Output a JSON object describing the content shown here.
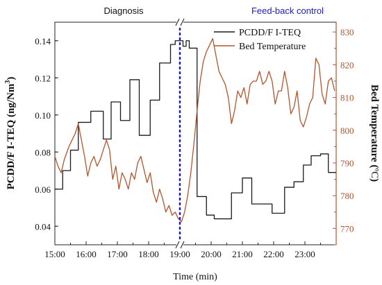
{
  "chart_data": {
    "type": "line",
    "phase_labels": {
      "left": "Diagnosis",
      "right": "Feed-back control"
    },
    "xlabel": "Time (min)",
    "ylabel_left": "PCDD/F I-TEQ (ng/Nm",
    "ylabel_left_sup": "3",
    "ylabel_left_end": ")",
    "ylabel_right": "Bed Temperature (",
    "ylabel_right_unit": "ºC",
    "ylabel_right_end": ")",
    "x_ticks": [
      "15:00",
      "16:00",
      "17:00",
      "18:00",
      "19:00",
      "20:00",
      "21:00",
      "22:00",
      "23:00"
    ],
    "x_tick_hours": [
      15,
      16,
      17,
      18,
      19,
      20,
      21,
      22,
      23
    ],
    "xlim_hours": [
      15.0,
      24.0
    ],
    "axis_break_hour": 19.0,
    "ylim_left": [
      0.03,
      0.15
    ],
    "yticks_left": [
      "0.04",
      "0.06",
      "0.08",
      "0.10",
      "0.12",
      "0.14"
    ],
    "ytick_values_left": [
      0.04,
      0.06,
      0.08,
      0.1,
      0.12,
      0.14
    ],
    "ylim_right": [
      765,
      833
    ],
    "yticks_right": [
      "770",
      "780",
      "790",
      "800",
      "810",
      "820",
      "830"
    ],
    "ytick_values_right": [
      770,
      780,
      790,
      800,
      810,
      820,
      830
    ],
    "legend_position": "top-right",
    "colors": {
      "pcdd": "#1a1a1a",
      "bed": "#b5532a",
      "divider": "#1c1cb8",
      "axis": "#222222"
    },
    "series": [
      {
        "name": "PCDD/F I-TEQ",
        "axis": "left",
        "step": true,
        "x": [
          15.0,
          15.25,
          15.5,
          15.75,
          16.15,
          16.55,
          16.8,
          17.1,
          17.4,
          17.7,
          18.05,
          18.35,
          18.7,
          18.85,
          19.1,
          19.2,
          19.3,
          19.55,
          19.85,
          20.1,
          20.35,
          20.65,
          21.0,
          21.3,
          21.7,
          21.95,
          22.35,
          22.65,
          22.95,
          23.2,
          23.5,
          23.75,
          24.0
        ],
        "values": [
          0.06,
          0.07,
          0.081,
          0.096,
          0.102,
          0.087,
          0.107,
          0.097,
          0.119,
          0.089,
          0.108,
          0.128,
          0.138,
          0.14,
          0.137,
          0.14,
          0.136,
          0.056,
          0.046,
          0.044,
          0.044,
          0.058,
          0.066,
          0.052,
          0.052,
          0.047,
          0.061,
          0.064,
          0.073,
          0.078,
          0.079,
          0.069,
          0.069
        ]
      },
      {
        "name": "Bed Temperature",
        "axis": "right",
        "step": false,
        "x": [
          15.0,
          15.1,
          15.2,
          15.3,
          15.45,
          15.55,
          15.65,
          15.75,
          15.85,
          15.95,
          16.05,
          16.15,
          16.25,
          16.35,
          16.45,
          16.55,
          16.65,
          16.75,
          16.85,
          16.95,
          17.05,
          17.15,
          17.25,
          17.35,
          17.45,
          17.55,
          17.65,
          17.75,
          17.85,
          17.95,
          18.05,
          18.15,
          18.25,
          18.35,
          18.45,
          18.55,
          18.65,
          18.75,
          18.85,
          18.95,
          19.05,
          19.15,
          19.25,
          19.35,
          19.45,
          19.55,
          19.65,
          19.75,
          19.85,
          19.95,
          20.05,
          20.15,
          20.25,
          20.35,
          20.45,
          20.55,
          20.65,
          20.75,
          20.85,
          20.95,
          21.05,
          21.15,
          21.25,
          21.35,
          21.45,
          21.55,
          21.65,
          21.75,
          21.85,
          21.95,
          22.05,
          22.15,
          22.25,
          22.35,
          22.45,
          22.55,
          22.65,
          22.75,
          22.85,
          22.95,
          23.05,
          23.15,
          23.25,
          23.35,
          23.45,
          23.55,
          23.65,
          23.75,
          23.85,
          23.95
        ],
        "values": [
          792,
          789,
          787,
          791,
          795,
          797,
          799,
          802,
          797,
          792,
          786,
          790,
          792,
          789,
          791,
          794,
          797,
          794,
          785,
          789,
          782,
          787,
          785,
          782,
          787,
          785,
          790,
          792,
          788,
          784,
          787,
          781,
          778,
          782,
          779,
          775,
          777,
          774,
          775,
          773,
          772,
          775,
          780,
          787,
          796,
          806,
          815,
          821,
          824,
          826,
          828,
          823,
          818,
          816,
          814,
          810,
          802,
          806,
          812,
          810,
          813,
          808,
          814,
          815,
          815,
          818,
          814,
          815,
          818,
          815,
          808,
          812,
          812,
          818,
          813,
          805,
          807,
          812,
          803,
          801,
          804,
          808,
          810,
          822,
          820,
          811,
          808,
          815,
          816,
          812
        ]
      }
    ]
  }
}
